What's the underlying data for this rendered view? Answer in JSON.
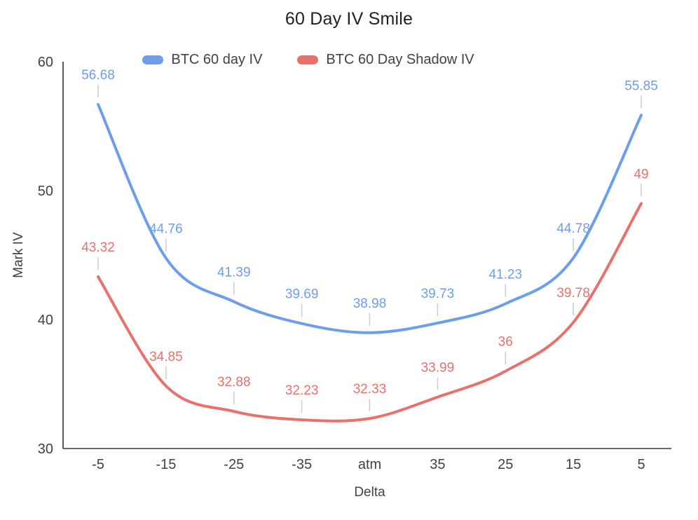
{
  "title": "60 Day IV Smile",
  "legend": {
    "items": [
      {
        "label": "BTC 60 day IV",
        "color": "#6d9eeb"
      },
      {
        "label": "BTC 60 Day Shadow IV",
        "color": "#e8726b"
      }
    ]
  },
  "axes": {
    "ylabel": "Mark IV",
    "xlabel": "Delta"
  },
  "chart_data": {
    "type": "line",
    "title": "60 Day IV Smile",
    "xlabel": "Delta",
    "ylabel": "Mark IV",
    "categories": [
      "-5",
      "-15",
      "-25",
      "-35",
      "atm",
      "35",
      "25",
      "15",
      "5"
    ],
    "series": [
      {
        "name": "BTC 60 day IV",
        "color": "#6d9eeb",
        "values": [
          56.68,
          44.76,
          41.39,
          39.69,
          38.98,
          39.73,
          41.23,
          44.78,
          55.85
        ]
      },
      {
        "name": "BTC 60 Day Shadow IV",
        "color": "#e8726b",
        "values": [
          43.32,
          34.85,
          32.88,
          32.23,
          32.33,
          33.99,
          36,
          39.78,
          49
        ]
      }
    ],
    "ylim": [
      30,
      60
    ],
    "yticks": [
      30,
      40,
      50,
      60
    ],
    "grid": false,
    "legend_position": "top",
    "smooth": true,
    "data_labels": true,
    "label_stem_color": "#cccccc",
    "axis_color": "#333333",
    "tick_label_color": "#424242",
    "title_color": "#212121"
  }
}
